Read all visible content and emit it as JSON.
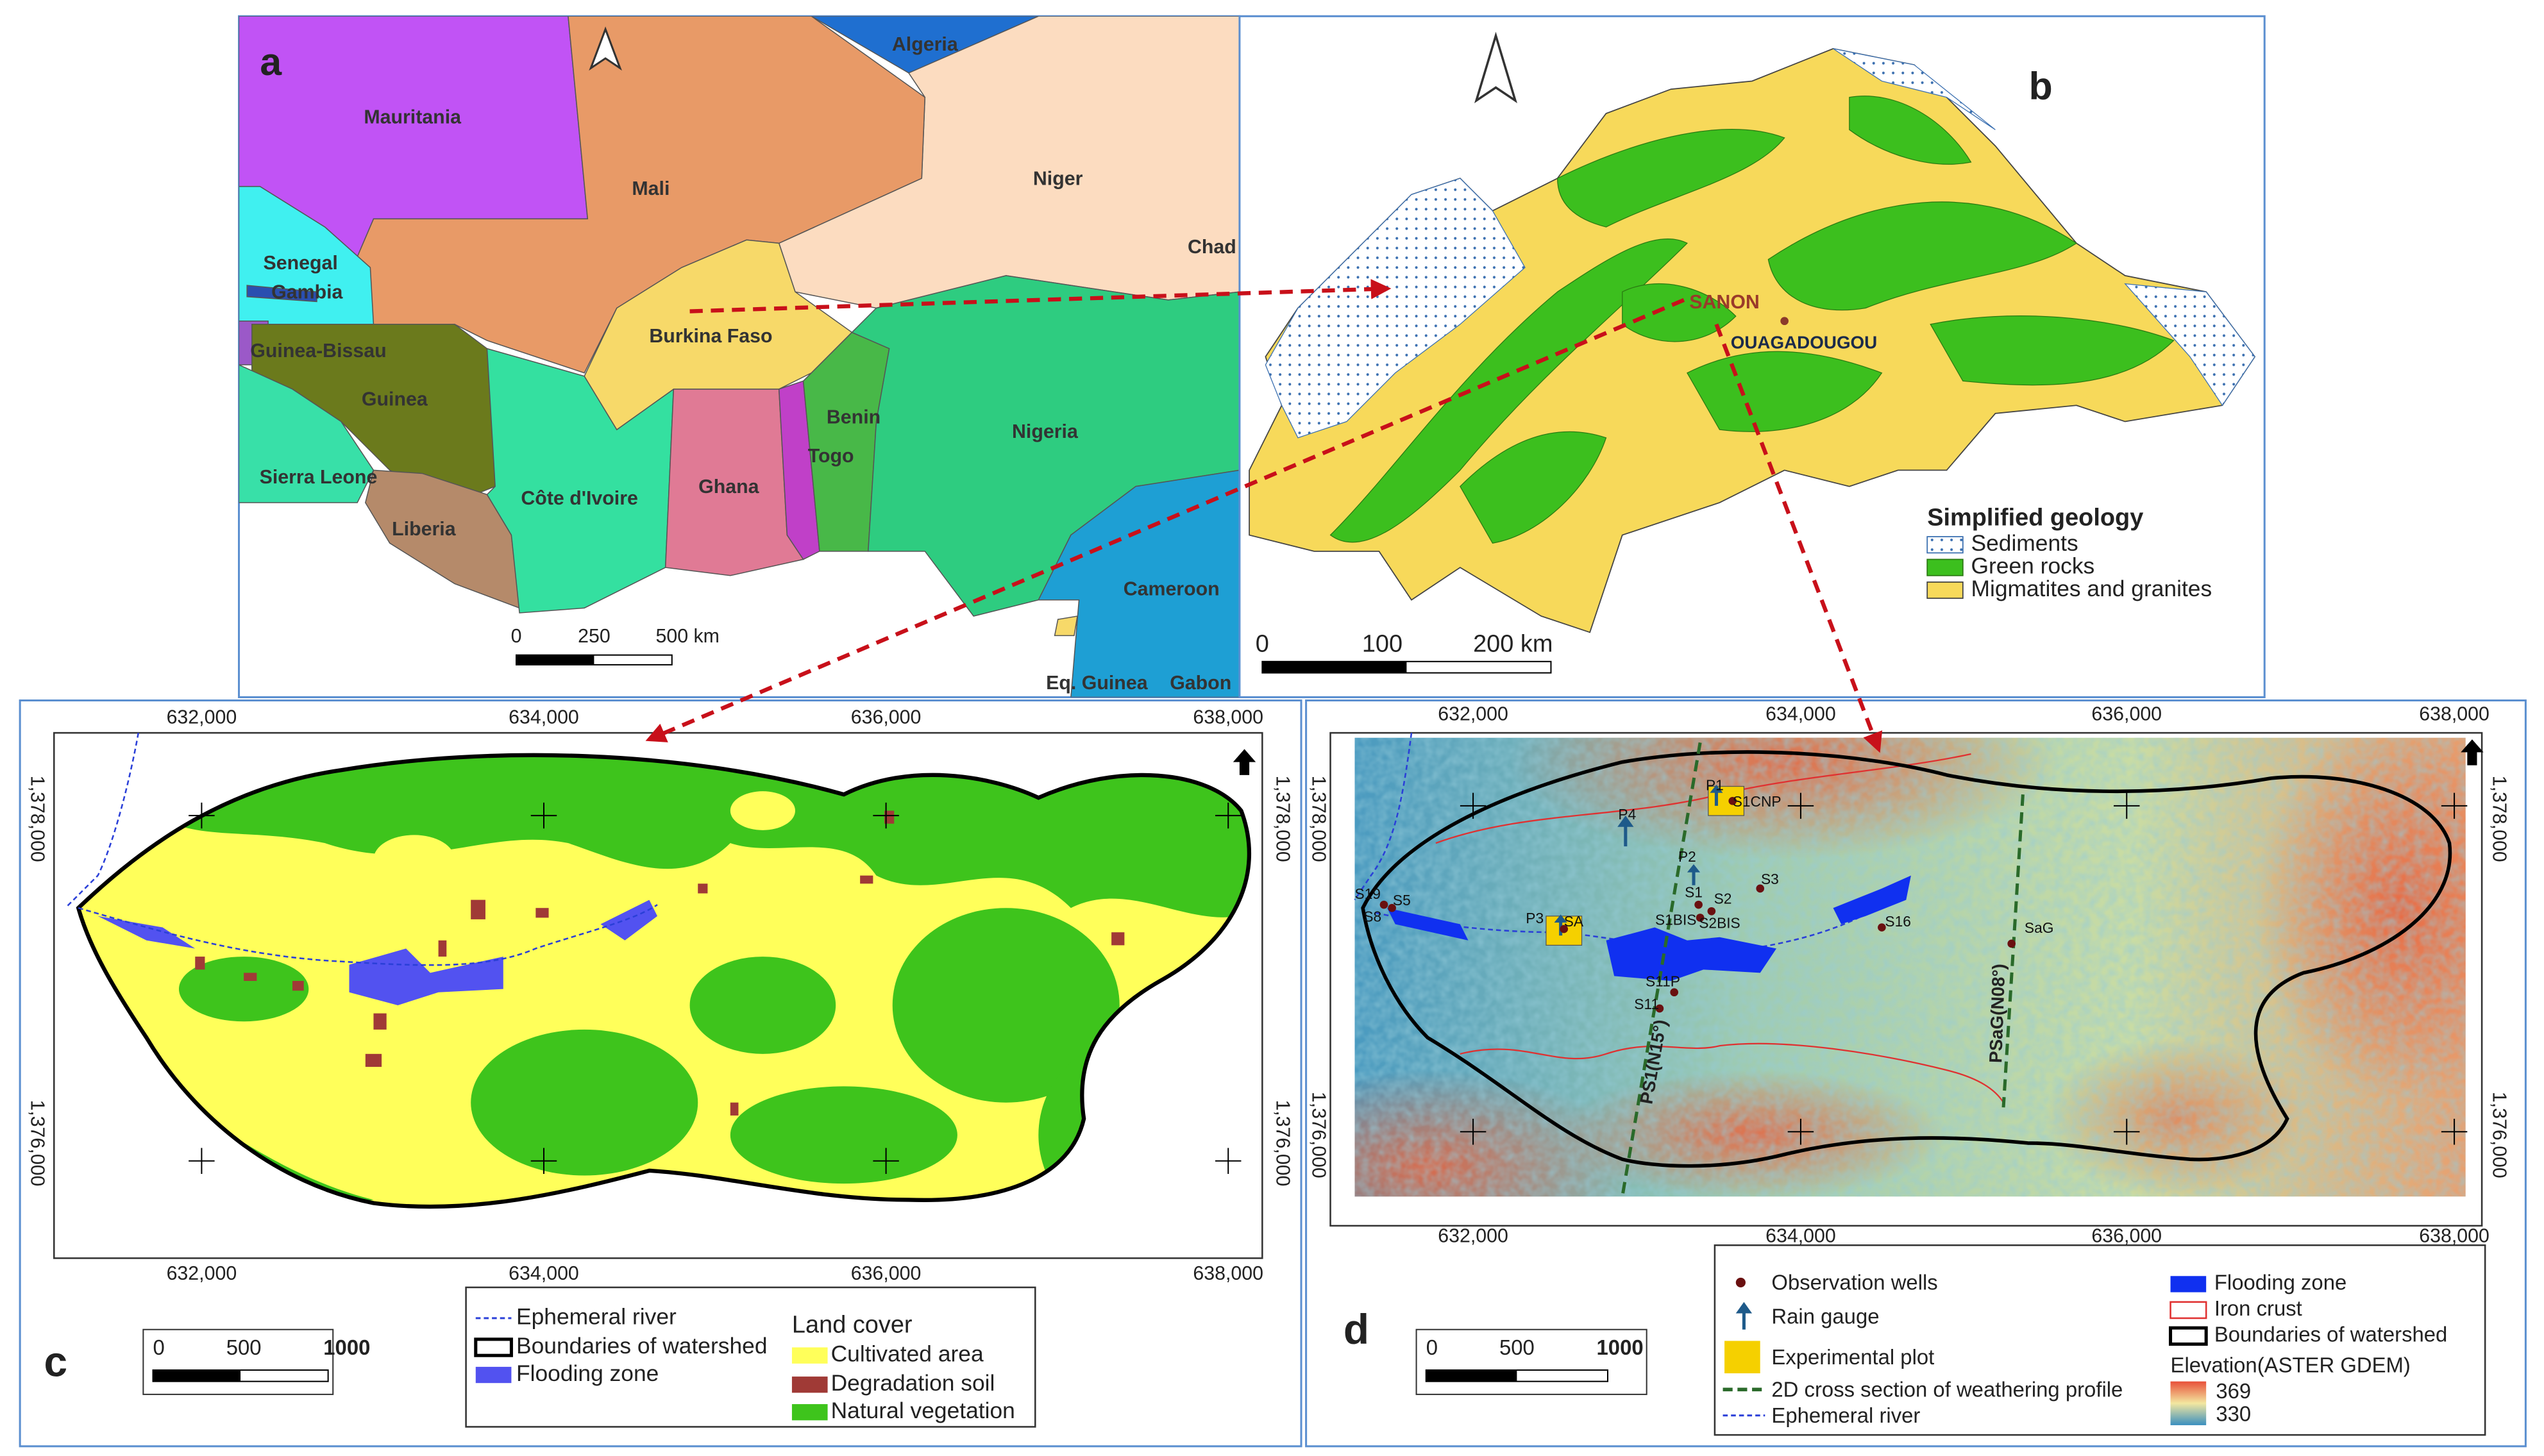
{
  "panel_a": {
    "label": "a",
    "countries": [
      "Algeria",
      "Mauritania",
      "Mali",
      "Niger",
      "Senegal",
      "Gambia",
      "Chad",
      "Guinea-Bissau",
      "Burkina Faso",
      "Guinea",
      "Benin",
      "Nigeria",
      "Sierra Leone",
      "Togo",
      "Ghana",
      "Côte d'Ivoire",
      "Liberia",
      "Cameroon",
      "Eq. Guinea",
      "Gabon"
    ],
    "scale": [
      "0",
      "250",
      "500 km"
    ]
  },
  "panel_b": {
    "label": "b",
    "places": [
      "SANON",
      "OUAGADOUGOU"
    ],
    "legend_title": "Simplified geology",
    "legend": [
      "Sediments",
      "Green rocks",
      "Migmatites and granites"
    ],
    "scale": [
      "0",
      "100",
      "200 km"
    ]
  },
  "panel_c": {
    "label": "c",
    "x_coords": [
      "632,000",
      "634,000",
      "636,000",
      "638,000"
    ],
    "y_coords": [
      "1,378,000",
      "1,376,000"
    ],
    "legend": [
      "Ephemeral river",
      "Boundaries of watershed",
      "Flooding zone"
    ],
    "land_cover_title": "Land cover",
    "land_cover": [
      "Cultivated area",
      "Degradation soil",
      "Natural vegetation"
    ],
    "scale": [
      "0",
      "500",
      "1000"
    ]
  },
  "panel_d": {
    "label": "d",
    "x_coords": [
      "632,000",
      "634,000",
      "636,000",
      "638,000"
    ],
    "y_coords": [
      "1,378,000",
      "1,376,000"
    ],
    "wells": [
      "S19",
      "S5",
      "S8",
      "SA",
      "P3",
      "P4",
      "P2",
      "P1",
      "S1CNP",
      "S1",
      "S2",
      "S3",
      "S1BIS",
      "S2BIS",
      "S16",
      "S11P",
      "S11",
      "SaG"
    ],
    "profiles": [
      "PS1(N15°)",
      "PSaG(N08°)"
    ],
    "legend": [
      "Observation wells",
      "Rain gauge",
      "Experimental plot",
      "2D cross section of weathering profile",
      "Ephemeral river",
      "Flooding zone",
      "Iron crust",
      "Boundaries of watershed"
    ],
    "elevation_title": "Elevation(ASTER GDEM)",
    "elevation_labels": [
      "369",
      "330"
    ],
    "scale": [
      "0",
      "500",
      "1000"
    ]
  }
}
